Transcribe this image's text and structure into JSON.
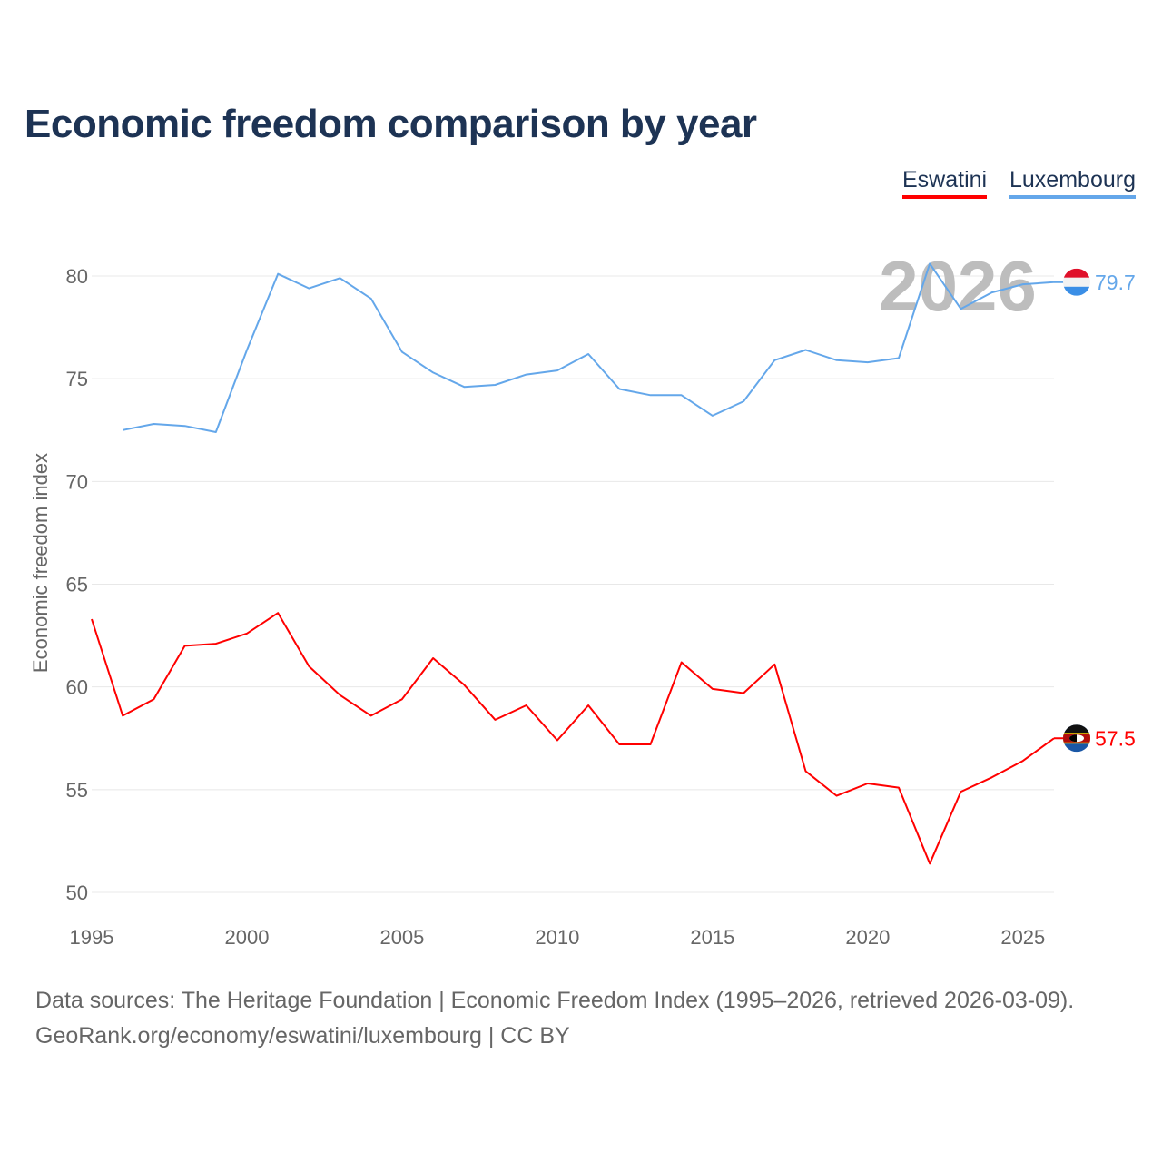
{
  "title": "Economic freedom comparison by year",
  "legend": [
    {
      "label": "Eswatini",
      "color": "#ff0000"
    },
    {
      "label": "Luxembourg",
      "color": "#64a7ea"
    }
  ],
  "year_watermark": "2026",
  "footer": {
    "line1": "Data sources: The Heritage Foundation | Economic Freedom Index (1995–2026, retrieved 2026-03-09).",
    "line2": "GeoRank.org/economy/eswatini/luxembourg | CC BY"
  },
  "chart_data": {
    "type": "line",
    "title": "Economic freedom comparison by year",
    "xlabel": "",
    "ylabel": "Economic freedom index",
    "xlim": [
      1995,
      2026
    ],
    "ylim": [
      50,
      81
    ],
    "yticks": [
      50,
      55,
      60,
      65,
      70,
      75,
      80
    ],
    "xticks": [
      1995,
      2000,
      2005,
      2010,
      2015,
      2020,
      2025
    ],
    "grid": true,
    "legend_position": "top-right",
    "series": [
      {
        "name": "Eswatini",
        "color": "#ff0000",
        "end_label": "57.5",
        "x": [
          1995,
          1996,
          1997,
          1998,
          1999,
          2000,
          2001,
          2002,
          2003,
          2004,
          2005,
          2006,
          2007,
          2008,
          2009,
          2010,
          2011,
          2012,
          2013,
          2014,
          2015,
          2016,
          2017,
          2018,
          2019,
          2020,
          2021,
          2022,
          2023,
          2024,
          2025,
          2026
        ],
        "values": [
          63.3,
          58.6,
          59.4,
          62.0,
          62.1,
          62.6,
          63.6,
          61.0,
          59.6,
          58.6,
          59.4,
          61.4,
          60.1,
          58.4,
          59.1,
          57.4,
          59.1,
          57.2,
          57.2,
          61.2,
          59.9,
          59.7,
          61.1,
          55.9,
          54.7,
          55.3,
          55.1,
          51.4,
          54.9,
          55.6,
          56.4,
          57.5
        ]
      },
      {
        "name": "Luxembourg",
        "color": "#64a7ea",
        "end_label": "79.7",
        "x": [
          1996,
          1997,
          1998,
          1999,
          2000,
          2001,
          2002,
          2003,
          2004,
          2005,
          2006,
          2007,
          2008,
          2009,
          2010,
          2011,
          2012,
          2013,
          2014,
          2015,
          2016,
          2017,
          2018,
          2019,
          2020,
          2021,
          2022,
          2023,
          2024,
          2025,
          2026
        ],
        "values": [
          72.5,
          72.8,
          72.7,
          72.4,
          76.4,
          80.1,
          79.4,
          79.9,
          78.9,
          76.3,
          75.3,
          74.6,
          74.7,
          75.2,
          75.4,
          76.2,
          74.5,
          74.2,
          74.2,
          73.2,
          73.9,
          75.9,
          76.4,
          75.9,
          75.8,
          76.0,
          80.6,
          78.4,
          79.2,
          79.6,
          79.7
        ]
      }
    ]
  }
}
